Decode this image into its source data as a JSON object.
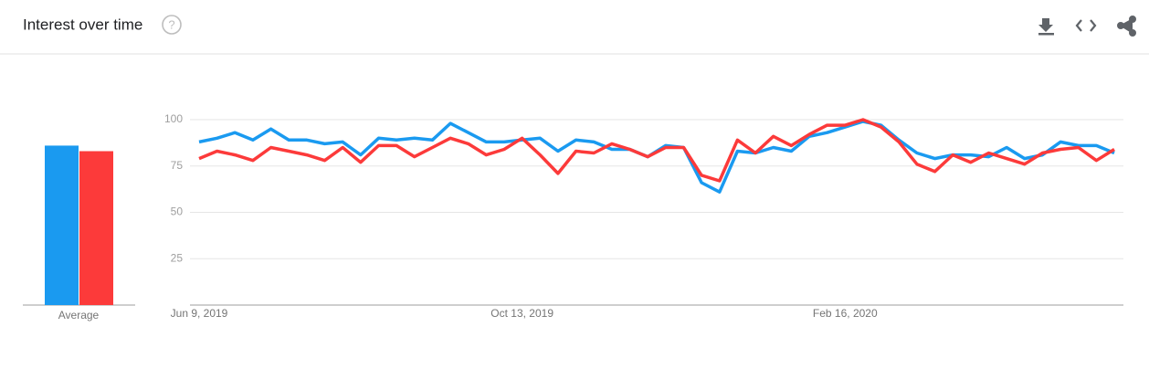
{
  "header": {
    "title": "Interest over time"
  },
  "chart_data": [
    {
      "type": "bar",
      "x_label": "Average",
      "ylim": [
        0,
        100
      ],
      "series": [
        {
          "color": "#1a9af0",
          "values": [
            86
          ]
        },
        {
          "color": "#fc3a3a",
          "values": [
            83
          ]
        }
      ]
    },
    {
      "type": "line",
      "ylim": [
        0,
        100
      ],
      "yticks": [
        25,
        50,
        75,
        100
      ],
      "grid": true,
      "categories": [
        "Jun 9, 2019",
        null,
        null,
        null,
        null,
        null,
        null,
        null,
        null,
        null,
        null,
        null,
        null,
        null,
        null,
        null,
        null,
        null,
        "Oct 13, 2019",
        null,
        null,
        null,
        null,
        null,
        null,
        null,
        null,
        null,
        null,
        null,
        null,
        null,
        null,
        null,
        null,
        null,
        "Feb 16, 2020",
        null,
        null,
        null,
        null,
        null,
        null,
        null,
        null,
        null,
        null,
        null,
        null,
        null,
        null,
        null
      ],
      "series": [
        {
          "color": "#1a9af0",
          "values": [
            88,
            90,
            93,
            89,
            95,
            89,
            89,
            87,
            88,
            81,
            90,
            89,
            90,
            89,
            98,
            93,
            88,
            88,
            89,
            90,
            83,
            89,
            88,
            84,
            84,
            80,
            86,
            85,
            66,
            61,
            83,
            82,
            85,
            83,
            91,
            93,
            96,
            99,
            97,
            89,
            82,
            79,
            81,
            81,
            80,
            85,
            79,
            81,
            88,
            86,
            86,
            82
          ]
        },
        {
          "color": "#fc3a3a",
          "values": [
            79,
            83,
            81,
            78,
            85,
            83,
            81,
            78,
            85,
            77,
            86,
            86,
            80,
            85,
            90,
            87,
            81,
            84,
            90,
            81,
            71,
            83,
            82,
            87,
            84,
            80,
            85,
            85,
            70,
            67,
            89,
            82,
            91,
            86,
            92,
            97,
            97,
            100,
            96,
            88,
            76,
            72,
            81,
            77,
            82,
            79,
            76,
            82,
            84,
            85,
            78,
            84
          ]
        }
      ]
    }
  ]
}
